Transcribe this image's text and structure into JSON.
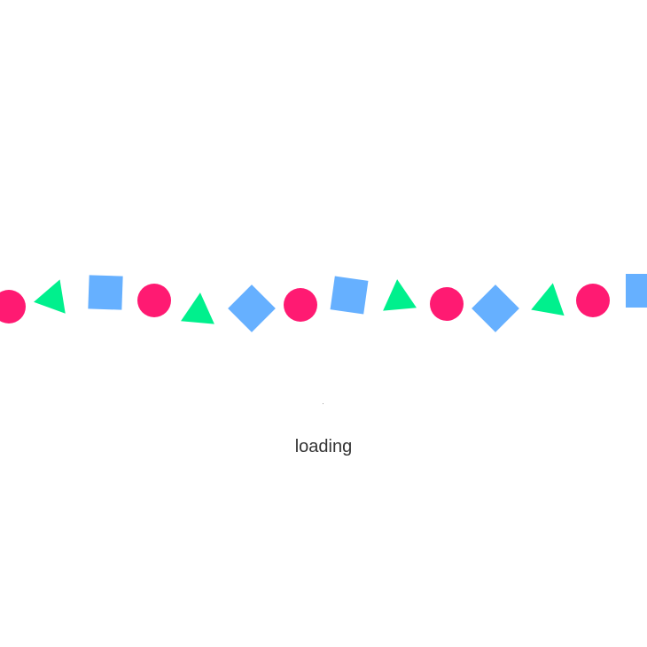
{
  "status": {
    "loading_label": "loading"
  },
  "colors": {
    "circle": "#ff1a72",
    "triangle": "#00f08d",
    "square": "#66b0ff",
    "background": "#ffffff",
    "text": "#333333"
  },
  "shape_sequence": [
    {
      "shape": "circle",
      "icon": "circle-icon"
    },
    {
      "shape": "triangle",
      "icon": "triangle-icon"
    },
    {
      "shape": "square",
      "icon": "square-icon"
    },
    {
      "shape": "circle",
      "icon": "circle-icon"
    },
    {
      "shape": "triangle",
      "icon": "triangle-icon"
    },
    {
      "shape": "square",
      "icon": "square-icon"
    },
    {
      "shape": "circle",
      "icon": "circle-icon"
    },
    {
      "shape": "square",
      "icon": "square-icon"
    },
    {
      "shape": "triangle",
      "icon": "triangle-icon"
    },
    {
      "shape": "circle",
      "icon": "circle-icon"
    },
    {
      "shape": "square",
      "icon": "square-icon"
    },
    {
      "shape": "triangle",
      "icon": "triangle-icon"
    },
    {
      "shape": "circle",
      "icon": "circle-icon"
    },
    {
      "shape": "square",
      "icon": "square-icon"
    }
  ]
}
